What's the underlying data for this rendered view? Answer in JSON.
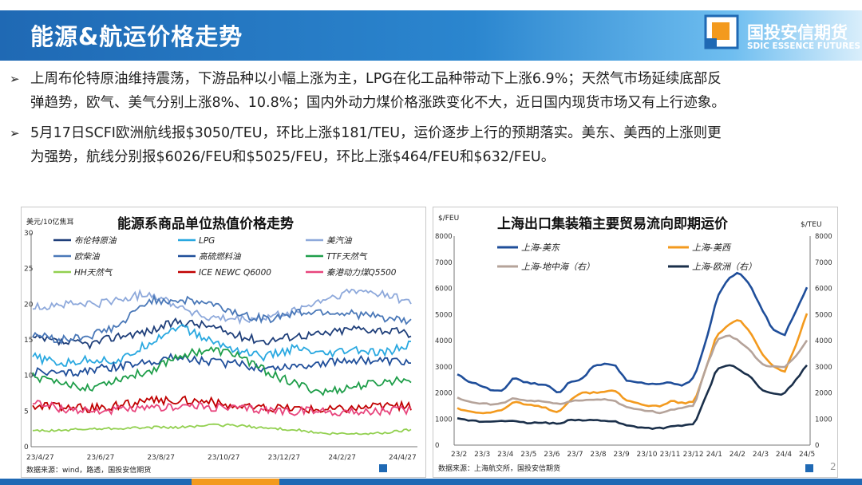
{
  "header": {
    "title": "能源&航运价格走势",
    "brand_cn": "国投安信期货",
    "brand_en": "SDIC ESSENCE FUTURES"
  },
  "bullets": [
    {
      "line1": "上周布伦特原油维持震荡，下游品种以小幅上涨为主，LPG在化工品种带动下上涨6.9%；天然气市场延续底部反",
      "line2": "弹趋势，欧气、美气分别上涨8%、10.8%；国内外动力煤价格涨跌变化不大，近日国内现货市场又有上行迹象。"
    },
    {
      "line1": "5月17日SCFI欧洲航线报$3050/TEU，环比上涨$181/TEU，运价逐步上行的预期落实。美东、美西的上涨则更",
      "line2": "为强势，航线分别报$6026/FEU和$5025/FEU，环比上涨$464/FEU和$632/FEU。"
    }
  ],
  "page_number": "2",
  "chart_data": [
    {
      "type": "line",
      "title": "能源系商品单位热值价格走势",
      "ylabel": "美元/10亿焦耳",
      "ylim": [
        0,
        30
      ],
      "yticks": [
        "0",
        "5",
        "10",
        "15",
        "20",
        "25",
        "30"
      ],
      "x_tick_labels": [
        "23/4/27",
        "23/6/27",
        "23/8/27",
        "23/10/27",
        "23/12/27",
        "24/2/27",
        "24/4/27"
      ],
      "source": "数据来源：wind，路透，国投安信期货",
      "legend_position": "top",
      "x": [
        "23/4/27",
        "23/5/27",
        "23/6/27",
        "23/7/27",
        "23/8/27",
        "23/9/27",
        "23/10/27",
        "23/11/27",
        "23/12/27",
        "24/1/27",
        "24/2/27",
        "24/3/27",
        "24/4/27",
        "24/5/17"
      ],
      "series": [
        {
          "name": "布伦特原油",
          "color": "#1f3f7a",
          "values": [
            15.2,
            14.6,
            14.4,
            15.6,
            16.2,
            17.6,
            17.0,
            15.6,
            14.8,
            15.6,
            15.8,
            16.6,
            16.4,
            15.8
          ]
        },
        {
          "name": "LPG",
          "color": "#29a8e0",
          "values": [
            12.6,
            11.6,
            12.3,
            12.0,
            14.6,
            17.0,
            15.0,
            13.6,
            12.6,
            13.8,
            12.8,
            13.6,
            13.0,
            14.4
          ]
        },
        {
          "name": "美汽油",
          "color": "#8ea9db",
          "values": [
            19.5,
            20.0,
            20.0,
            20.6,
            21.6,
            19.8,
            18.0,
            17.8,
            18.0,
            19.0,
            20.6,
            21.8,
            21.6,
            20.2
          ]
        },
        {
          "name": "欧柴油",
          "color": "#4a78b8",
          "values": [
            15.8,
            15.0,
            15.6,
            17.0,
            20.6,
            20.6,
            20.2,
            18.8,
            17.8,
            18.8,
            19.0,
            18.6,
            18.2,
            17.4
          ]
        },
        {
          "name": "高硫燃料油",
          "color": "#1f4e9a",
          "values": [
            10.6,
            10.2,
            10.8,
            11.2,
            12.0,
            12.6,
            12.0,
            11.6,
            11.0,
            11.4,
            11.8,
            12.2,
            12.0,
            11.8
          ]
        },
        {
          "name": "TTF天然气",
          "color": "#1f9e4a",
          "values": [
            10.0,
            8.6,
            8.4,
            9.6,
            10.6,
            12.8,
            13.6,
            13.0,
            10.6,
            8.8,
            7.6,
            8.4,
            9.0,
            9.6
          ]
        },
        {
          "name": "HH天然气",
          "color": "#92d050",
          "values": [
            2.2,
            2.3,
            2.5,
            2.6,
            2.7,
            2.7,
            3.0,
            3.0,
            2.6,
            2.4,
            1.8,
            1.8,
            1.9,
            2.4
          ]
        },
        {
          "name": "ICE NEWC Q6000",
          "color": "#c00000",
          "values": [
            5.8,
            5.6,
            5.4,
            5.8,
            6.4,
            6.6,
            6.4,
            5.6,
            5.4,
            5.4,
            5.2,
            5.4,
            5.8,
            5.6
          ]
        },
        {
          "name": "秦港动力煤Q5500",
          "color": "#e8457d",
          "values": [
            6.2,
            5.4,
            5.0,
            5.2,
            5.2,
            5.8,
            5.6,
            5.4,
            5.2,
            5.0,
            5.0,
            4.8,
            5.0,
            5.2
          ]
        }
      ]
    },
    {
      "type": "line",
      "title": "上海出口集装箱主要贸易流向即期运价",
      "ylabel_left": "$/FEU",
      "ylabel_right": "$/TEU",
      "ylim_left": [
        0,
        8000
      ],
      "ylim_right": [
        0,
        8000
      ],
      "yticks_left": [
        "0",
        "1000",
        "2000",
        "3000",
        "4000",
        "5000",
        "6000",
        "7000",
        "8000"
      ],
      "yticks_right": [
        "0",
        "1000",
        "2000",
        "3000",
        "4000",
        "5000",
        "6000",
        "7000",
        "8000"
      ],
      "categories": [
        "23/2",
        "23/3",
        "23/4",
        "23/5",
        "23/6",
        "23/7",
        "23/8",
        "23/9",
        "23/10",
        "23/11",
        "23/12",
        "24/1",
        "24/2",
        "24/3",
        "24/4",
        "24/5"
      ],
      "source": "数据来源：上海航交所，国投安信期货",
      "legend_position": "top",
      "x": [
        "23/2",
        "23/2.5",
        "23/3",
        "23/3.5",
        "23/4",
        "23/4.5",
        "23/5",
        "23/5.5",
        "23/6",
        "23/6.5",
        "23/7",
        "23/7.5",
        "23/8",
        "23/8.5",
        "23/9",
        "23/9.5",
        "23/10",
        "23/10.5",
        "23/11",
        "23/11.5",
        "23/12",
        "23/12.5",
        "24/1",
        "24/1.5",
        "24/2",
        "24/2.5",
        "24/3",
        "24/3.5",
        "24/4",
        "24/4.5",
        "24/5",
        "24/5.5"
      ],
      "series": [
        {
          "name": "上海-美东",
          "color": "#1f4e9a",
          "axis": "left",
          "values": [
            2700,
            2450,
            2300,
            2100,
            2050,
            2600,
            2400,
            2350,
            2300,
            1950,
            2450,
            2500,
            3000,
            3100,
            3050,
            2450,
            2400,
            2350,
            2350,
            2400,
            2250,
            2600,
            3900,
            5600,
            6400,
            6600,
            6100,
            5200,
            4400,
            4200,
            5100,
            6026
          ]
        },
        {
          "name": "上海-美西",
          "color": "#f39a1e",
          "axis": "left",
          "values": [
            1400,
            1300,
            1250,
            1250,
            1350,
            1650,
            1550,
            1500,
            1400,
            1250,
            1750,
            2000,
            2000,
            2050,
            2100,
            1700,
            1600,
            1500,
            1500,
            1700,
            1600,
            1650,
            2900,
            4200,
            4600,
            4800,
            4300,
            3500,
            3000,
            2800,
            3800,
            5025
          ]
        },
        {
          "name": "上海-地中海（右）",
          "color": "#b5a39a",
          "axis": "right",
          "values": [
            1800,
            1650,
            1600,
            1550,
            1600,
            1800,
            1700,
            1700,
            1650,
            1550,
            1700,
            1700,
            1750,
            1750,
            1700,
            1450,
            1350,
            1300,
            1250,
            1350,
            1450,
            1500,
            2900,
            4000,
            4200,
            4000,
            3600,
            3100,
            3000,
            3000,
            3400,
            4000
          ]
        },
        {
          "name": "上海-欧洲（右）",
          "color": "#1a2f4a",
          "axis": "right",
          "values": [
            1000,
            950,
            900,
            900,
            950,
            900,
            850,
            850,
            850,
            800,
            1000,
            950,
            950,
            950,
            900,
            750,
            700,
            650,
            650,
            700,
            750,
            800,
            1800,
            2900,
            3100,
            2900,
            2600,
            2100,
            1950,
            1950,
            2500,
            3050
          ]
        }
      ]
    }
  ]
}
